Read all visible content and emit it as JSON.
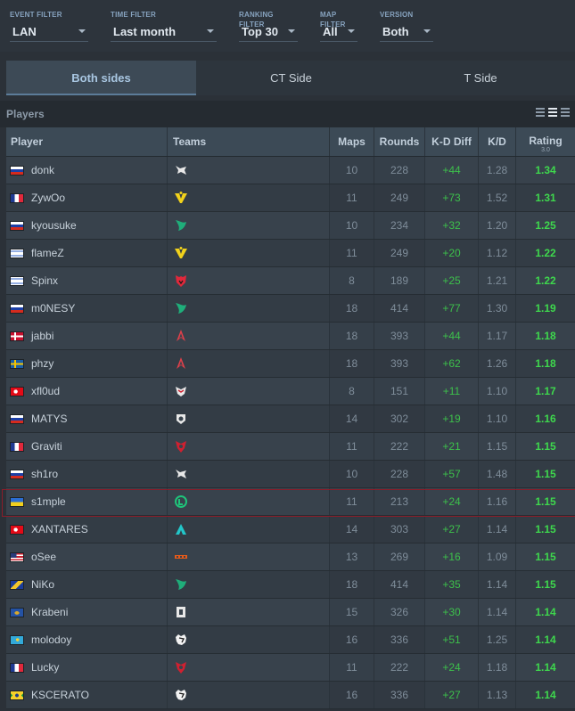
{
  "filters": [
    {
      "label": "EVENT FILTER",
      "value": "LAN"
    },
    {
      "label": "TIME FILTER",
      "value": "Last month"
    },
    {
      "label": "RANKING FILTER",
      "value": "Top 30"
    },
    {
      "label": "MAP FILTER",
      "value": "All"
    },
    {
      "label": "VERSION",
      "value": "Both"
    }
  ],
  "tabs": [
    "Both sides",
    "CT Side",
    "T Side"
  ],
  "section_title": "Players",
  "headers": {
    "player": "Player",
    "teams": "Teams",
    "maps": "Maps",
    "rounds": "Rounds",
    "kd_diff": "K-D Diff",
    "kd": "K/D",
    "rating": "Rating",
    "rating_version": "3.0"
  },
  "colors": {
    "accent": "#5c7c99",
    "positive": "#3dc04b",
    "rating": "#3ed84d",
    "highlight_border": "#8a1d2a"
  },
  "players": [
    {
      "name": "donk",
      "flag": "russia",
      "team_icon": "spirit-logo",
      "maps": "10",
      "rounds": "228",
      "kd_diff": "+44",
      "kd": "1.28",
      "rating": "1.34"
    },
    {
      "name": "ZywOo",
      "flag": "france",
      "team_icon": "vitality-logo",
      "maps": "11",
      "rounds": "249",
      "kd_diff": "+73",
      "kd": "1.52",
      "rating": "1.31"
    },
    {
      "name": "kyousuke",
      "flag": "russia",
      "team_icon": "falcons-logo",
      "maps": "10",
      "rounds": "234",
      "kd_diff": "+32",
      "kd": "1.20",
      "rating": "1.25"
    },
    {
      "name": "flameZ",
      "flag": "israel",
      "team_icon": "vitality-logo",
      "maps": "11",
      "rounds": "249",
      "kd_diff": "+20",
      "kd": "1.12",
      "rating": "1.22"
    },
    {
      "name": "Spinx",
      "flag": "israel",
      "team_icon": "mouz-logo",
      "maps": "8",
      "rounds": "189",
      "kd_diff": "+25",
      "kd": "1.21",
      "rating": "1.22"
    },
    {
      "name": "m0NESY",
      "flag": "russia",
      "team_icon": "falcons-logo",
      "maps": "18",
      "rounds": "414",
      "kd_diff": "+77",
      "kd": "1.30",
      "rating": "1.19"
    },
    {
      "name": "jabbi",
      "flag": "denmark",
      "team_icon": "astralis-logo",
      "maps": "18",
      "rounds": "393",
      "kd_diff": "+44",
      "kd": "1.17",
      "rating": "1.18"
    },
    {
      "name": "phzy",
      "flag": "sweden",
      "team_icon": "astralis-logo",
      "maps": "18",
      "rounds": "393",
      "kd_diff": "+62",
      "kd": "1.26",
      "rating": "1.18"
    },
    {
      "name": "xfl0ud",
      "flag": "turkey",
      "team_icon": "heroic-logo",
      "maps": "8",
      "rounds": "151",
      "kd_diff": "+11",
      "kd": "1.10",
      "rating": "1.17"
    },
    {
      "name": "MATYS",
      "flag": "slovakia",
      "team_icon": "g2-logo",
      "maps": "14",
      "rounds": "302",
      "kd_diff": "+19",
      "kd": "1.10",
      "rating": "1.16"
    },
    {
      "name": "Graviti",
      "flag": "france",
      "team_icon": "3dmax-logo",
      "maps": "11",
      "rounds": "222",
      "kd_diff": "+21",
      "kd": "1.15",
      "rating": "1.15"
    },
    {
      "name": "sh1ro",
      "flag": "russia",
      "team_icon": "spirit-logo",
      "maps": "10",
      "rounds": "228",
      "kd_diff": "+57",
      "kd": "1.48",
      "rating": "1.15"
    },
    {
      "name": "s1mple",
      "flag": "ukraine",
      "team_icon": "bc-game-logo",
      "maps": "11",
      "rounds": "213",
      "kd_diff": "+24",
      "kd": "1.16",
      "rating": "1.15"
    },
    {
      "name": "XANTARES",
      "flag": "turkey",
      "team_icon": "aurora-logo",
      "maps": "14",
      "rounds": "303",
      "kd_diff": "+27",
      "kd": "1.14",
      "rating": "1.15"
    },
    {
      "name": "oSee",
      "flag": "usa",
      "team_icon": "nrg-logo",
      "maps": "13",
      "rounds": "269",
      "kd_diff": "+16",
      "kd": "1.09",
      "rating": "1.15"
    },
    {
      "name": "NiKo",
      "flag": "bosnia",
      "team_icon": "falcons-logo",
      "maps": "18",
      "rounds": "414",
      "kd_diff": "+35",
      "kd": "1.14",
      "rating": "1.15"
    },
    {
      "name": "Krabeni",
      "flag": "kosovo",
      "team_icon": "paravision-logo",
      "maps": "15",
      "rounds": "326",
      "kd_diff": "+30",
      "kd": "1.14",
      "rating": "1.14"
    },
    {
      "name": "molodoy",
      "flag": "kazakhstan",
      "team_icon": "furia-logo",
      "maps": "16",
      "rounds": "336",
      "kd_diff": "+51",
      "kd": "1.25",
      "rating": "1.14"
    },
    {
      "name": "Lucky",
      "flag": "france",
      "team_icon": "3dmax-logo",
      "maps": "11",
      "rounds": "222",
      "kd_diff": "+24",
      "kd": "1.18",
      "rating": "1.14"
    },
    {
      "name": "KSCERATO",
      "flag": "brazil",
      "team_icon": "furia-logo",
      "maps": "16",
      "rounds": "336",
      "kd_diff": "+27",
      "kd": "1.13",
      "rating": "1.14"
    }
  ]
}
